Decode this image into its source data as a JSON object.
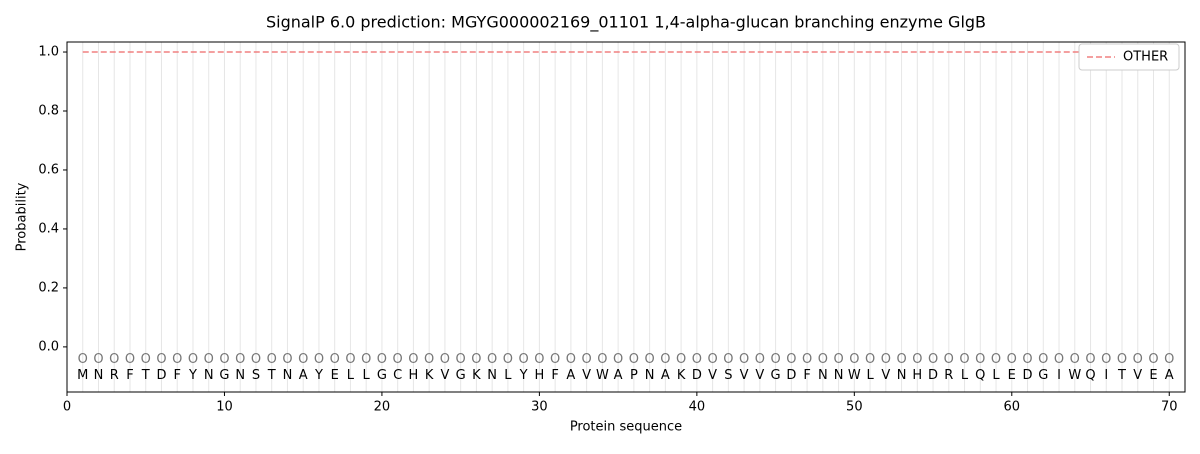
{
  "chart_data": {
    "type": "line",
    "title": "SignalP 6.0 prediction: MGYG000002169_01101 1,4-alpha-glucan branching enzyme GlgB",
    "xlabel": "Protein sequence",
    "ylabel": "Probability",
    "x": [
      1,
      2,
      3,
      4,
      5,
      6,
      7,
      8,
      9,
      10,
      11,
      12,
      13,
      14,
      15,
      16,
      17,
      18,
      19,
      20,
      21,
      22,
      23,
      24,
      25,
      26,
      27,
      28,
      29,
      30,
      31,
      32,
      33,
      34,
      35,
      36,
      37,
      38,
      39,
      40,
      41,
      42,
      43,
      44,
      45,
      46,
      47,
      48,
      49,
      50,
      51,
      52,
      53,
      54,
      55,
      56,
      57,
      58,
      59,
      60,
      61,
      62,
      63,
      64,
      65,
      66,
      67,
      68,
      69,
      70
    ],
    "sequence": "MNRFTDFYNGNSTNAYELLGCHKVGKNLYHFAVWAPNAKDVSVVGDFNNWLVNHDRLQLEDGIWQITVEA",
    "region_labels": "OOOOOOOOOOOOOOOOOOOOOOOOOOOOOOOOOOOOOOOOOOOOOOOOOOOOOOOOOOOOOOOOOOOOOO",
    "series": [
      {
        "name": "OTHER",
        "color": "#f08080",
        "dashed": true,
        "values": [
          1,
          1,
          1,
          1,
          1,
          1,
          1,
          1,
          1,
          1,
          1,
          1,
          1,
          1,
          1,
          1,
          1,
          1,
          1,
          1,
          1,
          1,
          1,
          1,
          1,
          1,
          1,
          1,
          1,
          1,
          1,
          1,
          1,
          1,
          1,
          1,
          1,
          1,
          1,
          1,
          1,
          1,
          1,
          1,
          1,
          1,
          1,
          1,
          1,
          1,
          1,
          1,
          1,
          1,
          1,
          1,
          1,
          1,
          1,
          1,
          1,
          1,
          1,
          1,
          1,
          1,
          1,
          1,
          1,
          1
        ]
      }
    ],
    "xlim": [
      0,
      71
    ],
    "ylim": [
      -0.153,
      1.034
    ],
    "xticks": [
      0,
      10,
      20,
      30,
      40,
      50,
      60,
      70
    ],
    "yticks": [
      {
        "value": 0,
        "label": "0.0"
      },
      {
        "value": 0.2,
        "label": "0.2"
      },
      {
        "value": 0.4,
        "label": "0.4"
      },
      {
        "value": 0.6,
        "label": "0.6"
      },
      {
        "value": 0.8,
        "label": "0.8"
      },
      {
        "value": 1,
        "label": "1.0"
      }
    ],
    "legend": "upper right"
  }
}
